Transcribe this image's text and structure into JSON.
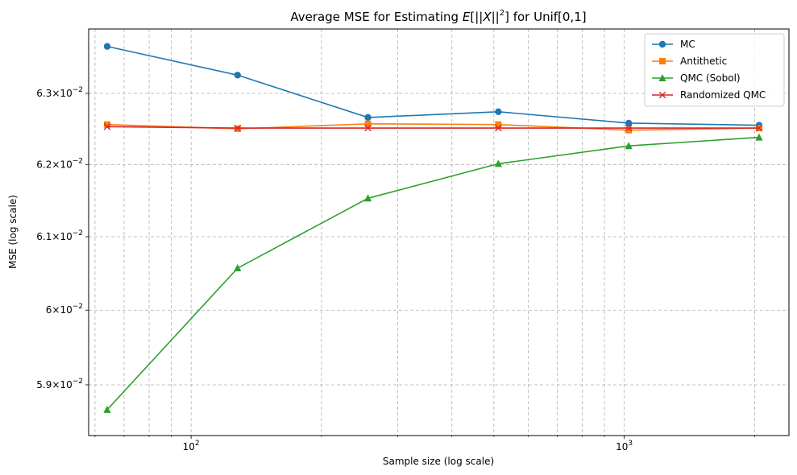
{
  "chart_data": {
    "type": "line",
    "title_parts": {
      "prefix": "Average MSE for Estimating ",
      "e": "E",
      "open": "[||",
      "x": "X",
      "close": "||",
      "sup": "2",
      "end": "] for Unif[0,1]"
    },
    "xlabel": "Sample size (log scale)",
    "ylabel": "MSE (log scale)",
    "xscale": "log",
    "yscale": "log",
    "xlim": [
      58,
      2400
    ],
    "ylim": [
      0.05833,
      0.06392
    ],
    "grid": true,
    "legend_position": "top-right",
    "x": [
      64,
      128,
      256,
      512,
      1024,
      2048
    ],
    "x_major_ticks": [
      {
        "value": 100,
        "mantissa": "10",
        "exp": "2"
      },
      {
        "value": 1000,
        "mantissa": "10",
        "exp": "3"
      }
    ],
    "x_minor_ticks": [
      60,
      70,
      80,
      90,
      200,
      300,
      400,
      500,
      600,
      700,
      800,
      900,
      2000
    ],
    "y_ticks": [
      {
        "value": 0.059,
        "mantissa": "5.9",
        "times": "×",
        "base": "10",
        "exp": "−2"
      },
      {
        "value": 0.06,
        "mantissa": "6",
        "times": "×",
        "base": "10",
        "exp": "−2"
      },
      {
        "value": 0.061,
        "mantissa": "6.1",
        "times": "×",
        "base": "10",
        "exp": "−2"
      },
      {
        "value": 0.062,
        "mantissa": "6.2",
        "times": "×",
        "base": "10",
        "exp": "−2"
      },
      {
        "value": 0.063,
        "mantissa": "6.3",
        "times": "×",
        "base": "10",
        "exp": "−2"
      }
    ],
    "series": [
      {
        "name": "MC",
        "color": "#1f77b4",
        "marker": "circle",
        "values": [
          0.06367,
          0.06326,
          0.06266,
          0.06274,
          0.06258,
          0.06255
        ]
      },
      {
        "name": "Antithetic",
        "color": "#ff7f0e",
        "marker": "square",
        "values": [
          0.06256,
          0.0625,
          0.06257,
          0.06256,
          0.06248,
          0.06251
        ]
      },
      {
        "name": "QMC (Sobol)",
        "color": "#2ca02c",
        "marker": "triangle",
        "values": [
          0.05867,
          0.06057,
          0.06153,
          0.06201,
          0.06226,
          0.06238
        ]
      },
      {
        "name": "Randomized QMC",
        "color": "#d62728",
        "marker": "x",
        "values": [
          0.06253,
          0.06251,
          0.06251,
          0.06251,
          0.06251,
          0.06251
        ]
      }
    ]
  }
}
